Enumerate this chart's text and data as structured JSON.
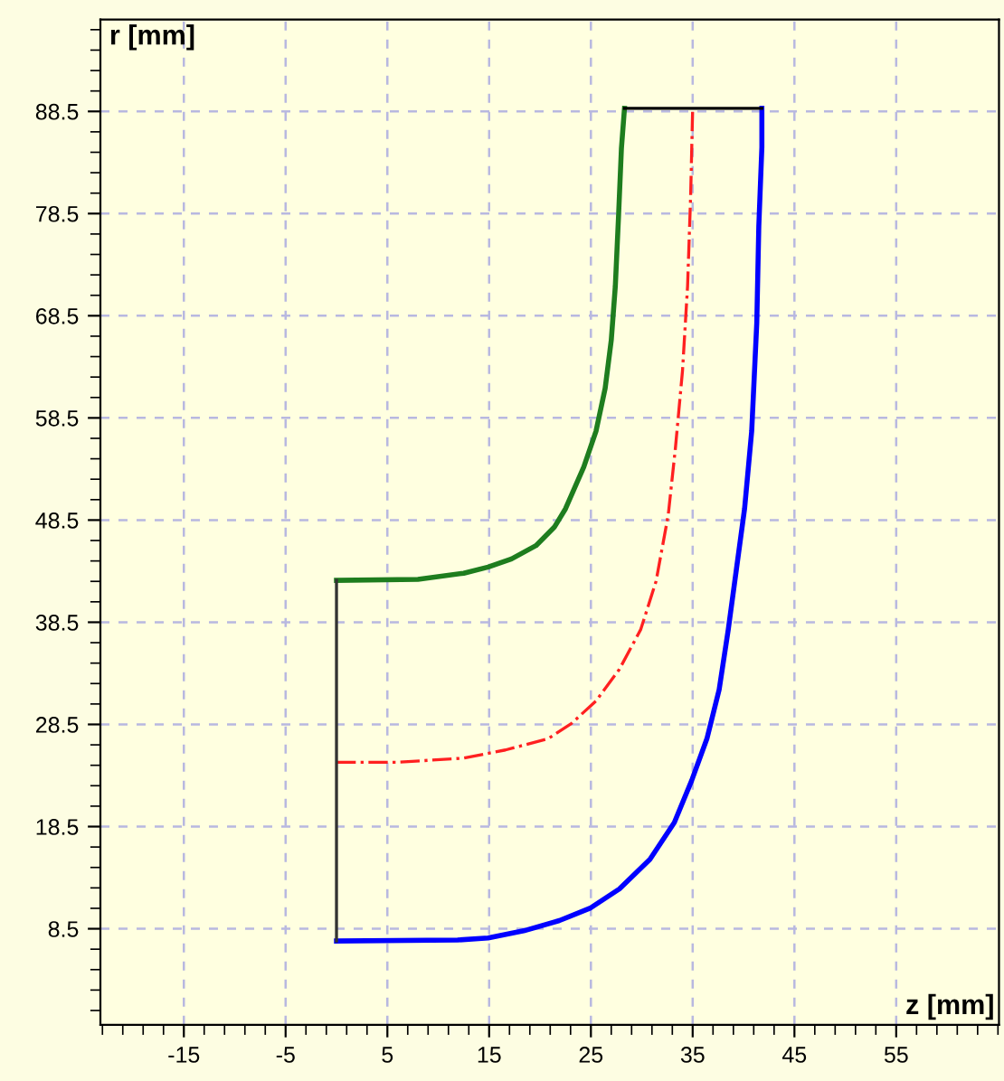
{
  "chart_data": {
    "type": "line",
    "xlabel": "z [mm]",
    "ylabel": "r [mm]",
    "xlim": [
      -23.2,
      65.1
    ],
    "ylim": [
      -0.9,
      97.5
    ],
    "xticks": [
      -15,
      -5,
      5,
      15,
      25,
      35,
      45,
      55
    ],
    "yticks": [
      8.5,
      18.5,
      28.5,
      38.5,
      48.5,
      58.5,
      68.5,
      78.5,
      88.5
    ],
    "grid": true,
    "legend": false,
    "marker": "none",
    "series": [
      {
        "color": "#1e7d1e",
        "line_style": "solid",
        "x": [
          0,
          8.0,
          12.5,
          14.9,
          17.2,
          19.6,
          21.4,
          22.5,
          24.3,
          25.5,
          26.4,
          27.0,
          27.4,
          27.7,
          28.0,
          28.3
        ],
        "values": [
          42.6,
          42.7,
          43.3,
          43.9,
          44.7,
          46.0,
          47.8,
          49.6,
          53.7,
          57.2,
          61.4,
          66.1,
          71.4,
          77.9,
          84.9,
          88.8
        ]
      },
      {
        "color": "#0000ff",
        "line_style": "solid",
        "x": [
          0,
          11.9,
          14.9,
          18.4,
          21.9,
          24.9,
          27.8,
          30.8,
          33.2,
          34.9,
          36.4,
          37.6,
          38.5,
          39.3,
          40.1,
          40.8,
          41.3,
          41.5,
          41.8,
          41.8
        ],
        "values": [
          7.3,
          7.4,
          7.6,
          8.3,
          9.3,
          10.5,
          12.4,
          15.3,
          18.9,
          23.0,
          27.1,
          31.9,
          37.8,
          43.7,
          49.6,
          57.2,
          67.8,
          77.3,
          85.0,
          88.8
        ]
      },
      {
        "color": "#ff2020",
        "line_style": "dashdot",
        "x": [
          0,
          6.0,
          12.5,
          16.6,
          20.8,
          23.1,
          25.5,
          27.8,
          29.9,
          31.4,
          32.6,
          33.3,
          34.0,
          34.5,
          34.8,
          35.0
        ],
        "values": [
          24.8,
          24.8,
          25.2,
          26.0,
          27.1,
          28.6,
          30.8,
          33.9,
          37.8,
          42.5,
          49.0,
          55.5,
          63.1,
          71.4,
          80.2,
          88.8
        ]
      },
      {
        "color": "#333333",
        "line_style": "solid",
        "x": [
          0,
          0
        ],
        "values": [
          7.3,
          42.6
        ]
      },
      {
        "color": "#000000",
        "line_style": "solid",
        "x": [
          28.3,
          41.8
        ],
        "values": [
          88.8,
          88.8
        ]
      }
    ]
  }
}
